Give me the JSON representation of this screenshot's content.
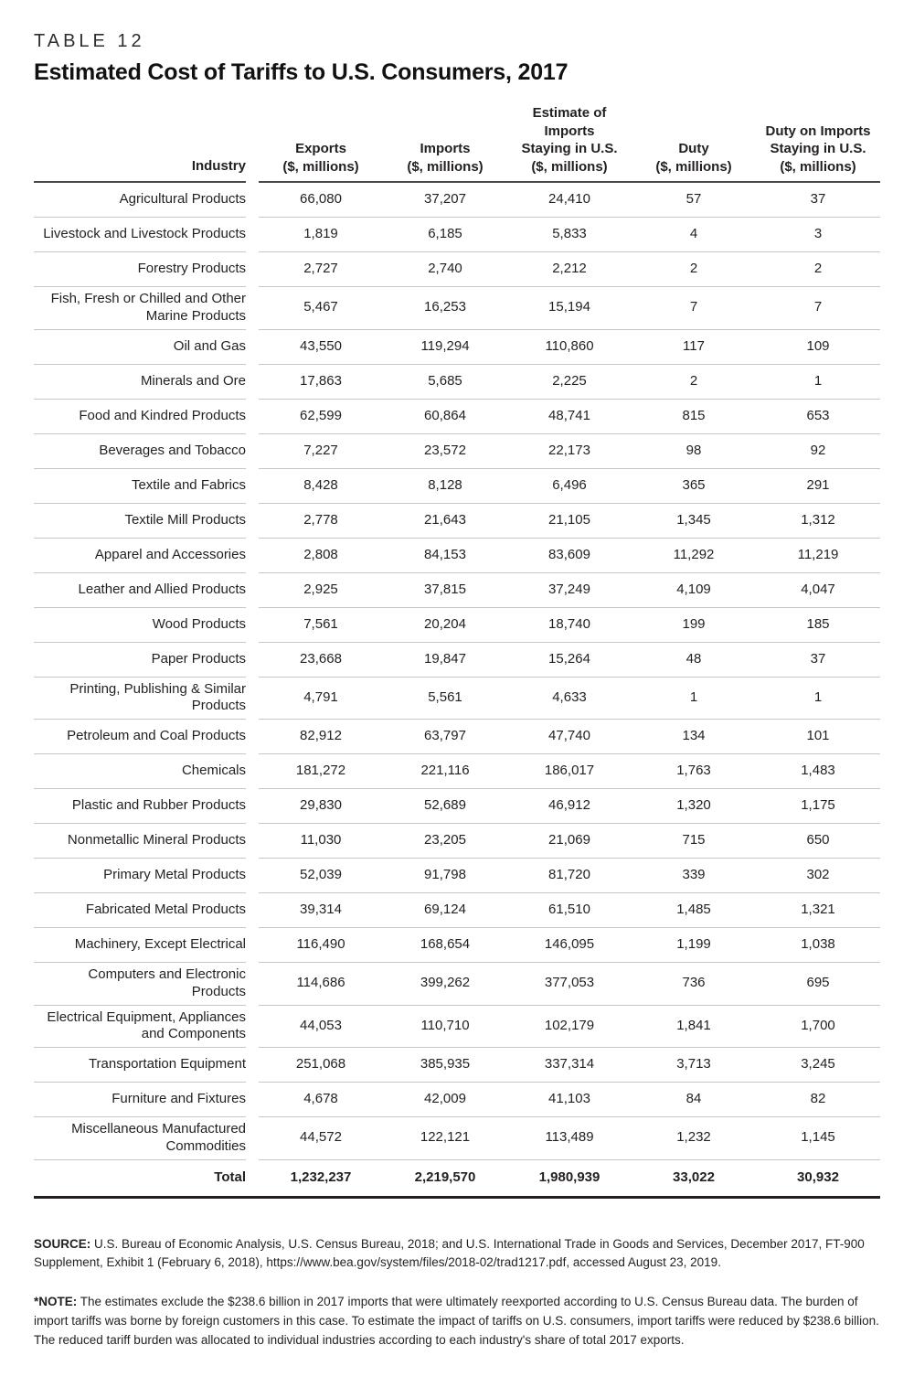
{
  "table_label": "TABLE 12",
  "title": "Estimated Cost of Tariffs to U.S. Consumers, 2017",
  "columns": [
    {
      "label": "Industry"
    },
    {
      "label": "Exports\n($, millions)"
    },
    {
      "label": "Imports\n($, millions)"
    },
    {
      "label": "Estimate of\nImports\nStaying in U.S.\n($, millions)"
    },
    {
      "label": "Duty\n($, millions)"
    },
    {
      "label": "Duty on Imports\nStaying in U.S.\n($, millions)"
    }
  ],
  "rows": [
    {
      "industry": "Agricultural Products",
      "values": [
        "66,080",
        "37,207",
        "24,410",
        "57",
        "37"
      ]
    },
    {
      "industry": "Livestock and Livestock Products",
      "values": [
        "1,819",
        "6,185",
        "5,833",
        "4",
        "3"
      ]
    },
    {
      "industry": "Forestry Products",
      "values": [
        "2,727",
        "2,740",
        "2,212",
        "2",
        "2"
      ]
    },
    {
      "industry": "Fish, Fresh or Chilled and Other Marine Products",
      "values": [
        "5,467",
        "16,253",
        "15,194",
        "7",
        "7"
      ]
    },
    {
      "industry": "Oil and Gas",
      "values": [
        "43,550",
        "119,294",
        "110,860",
        "117",
        "109"
      ]
    },
    {
      "industry": "Minerals and Ore",
      "values": [
        "17,863",
        "5,685",
        "2,225",
        "2",
        "1"
      ]
    },
    {
      "industry": "Food and Kindred Products",
      "values": [
        "62,599",
        "60,864",
        "48,741",
        "815",
        "653"
      ]
    },
    {
      "industry": "Beverages and Tobacco",
      "values": [
        "7,227",
        "23,572",
        "22,173",
        "98",
        "92"
      ]
    },
    {
      "industry": "Textile and Fabrics",
      "values": [
        "8,428",
        "8,128",
        "6,496",
        "365",
        "291"
      ]
    },
    {
      "industry": "Textile Mill Products",
      "values": [
        "2,778",
        "21,643",
        "21,105",
        "1,345",
        "1,312"
      ]
    },
    {
      "industry": "Apparel and Accessories",
      "values": [
        "2,808",
        "84,153",
        "83,609",
        "11,292",
        "11,219"
      ]
    },
    {
      "industry": "Leather and Allied Products",
      "values": [
        "2,925",
        "37,815",
        "37,249",
        "4,109",
        "4,047"
      ]
    },
    {
      "industry": "Wood Products",
      "values": [
        "7,561",
        "20,204",
        "18,740",
        "199",
        "185"
      ]
    },
    {
      "industry": "Paper Products",
      "values": [
        "23,668",
        "19,847",
        "15,264",
        "48",
        "37"
      ]
    },
    {
      "industry": "Printing, Publishing & Similar Products",
      "values": [
        "4,791",
        "5,561",
        "4,633",
        "1",
        "1"
      ]
    },
    {
      "industry": "Petroleum and Coal Products",
      "values": [
        "82,912",
        "63,797",
        "47,740",
        "134",
        "101"
      ]
    },
    {
      "industry": "Chemicals",
      "values": [
        "181,272",
        "221,116",
        "186,017",
        "1,763",
        "1,483"
      ]
    },
    {
      "industry": "Plastic and Rubber Products",
      "values": [
        "29,830",
        "52,689",
        "46,912",
        "1,320",
        "1,175"
      ]
    },
    {
      "industry": "Nonmetallic Mineral Products",
      "values": [
        "11,030",
        "23,205",
        "21,069",
        "715",
        "650"
      ]
    },
    {
      "industry": "Primary Metal Products",
      "values": [
        "52,039",
        "91,798",
        "81,720",
        "339",
        "302"
      ]
    },
    {
      "industry": "Fabricated Metal Products",
      "values": [
        "39,314",
        "69,124",
        "61,510",
        "1,485",
        "1,321"
      ]
    },
    {
      "industry": "Machinery, Except Electrical",
      "values": [
        "116,490",
        "168,654",
        "146,095",
        "1,199",
        "1,038"
      ]
    },
    {
      "industry": "Computers and Electronic Products",
      "values": [
        "114,686",
        "399,262",
        "377,053",
        "736",
        "695"
      ]
    },
    {
      "industry": "Electrical Equipment, Appliances and Components",
      "values": [
        "44,053",
        "110,710",
        "102,179",
        "1,841",
        "1,700"
      ]
    },
    {
      "industry": "Transportation Equipment",
      "values": [
        "251,068",
        "385,935",
        "337,314",
        "3,713",
        "3,245"
      ]
    },
    {
      "industry": "Furniture and Fixtures",
      "values": [
        "4,678",
        "42,009",
        "41,103",
        "84",
        "82"
      ]
    },
    {
      "industry": "Miscellaneous Manufactured Commodities",
      "values": [
        "44,572",
        "122,121",
        "113,489",
        "1,232",
        "1,145"
      ]
    }
  ],
  "total": {
    "label": "Total",
    "values": [
      "1,232,237",
      "2,219,570",
      "1,980,939",
      "33,022",
      "30,932"
    ]
  },
  "source": {
    "label": "SOURCE:",
    "text": " U.S. Bureau of Economic Analysis, U.S. Census Bureau, 2018; and U.S. International Trade in Goods and Services, December 2017, FT-900 Supplement, Exhibit 1 (February 6, 2018), https://www.bea.gov/system/files/2018-02/trad1217.pdf, accessed August 23, 2019."
  },
  "note": {
    "label": "*NOTE:",
    "text": " The estimates exclude the $238.6 billion in 2017 imports that were ultimately reexported according to U.S. Census Bureau data. The burden of import tariffs was borne by foreign customers in this case. To estimate the impact of tariffs on U.S. consumers, import tariffs were reduced by $238.6 billion. The reduced tariff burden was allocated to individual industries according to each industry's share of total 2017 exports."
  },
  "colors": {
    "text": "#231f20",
    "row_separator": "#c6c6c6",
    "header_rule": "#4a4a4a",
    "bottom_rule": "#231f20"
  }
}
